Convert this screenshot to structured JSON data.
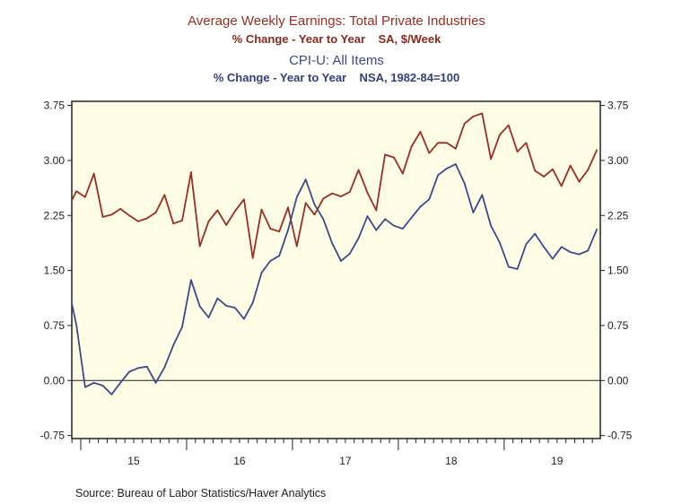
{
  "titles": {
    "line1": "Average Weekly Earnings: Total Private Industries",
    "line2": "% Change - Year to Year    SA, $/Week",
    "line3": "CPI-U: All Items",
    "line4": "% Change - Year to Year    NSA, 1982-84=100"
  },
  "source": "Source:  Bureau of Labor Statistics/Haver Analytics",
  "chart_data": {
    "type": "line",
    "title": "Average Weekly Earnings: Total Private Industries / CPI-U: All Items",
    "xlabel": "",
    "ylabel": "",
    "xlim": [
      "2014-12",
      "2019-11"
    ],
    "ylim": [
      -0.75,
      3.75
    ],
    "yticks": [
      "3.75",
      "3.00",
      "2.25",
      "1.50",
      "0.75",
      "0.00",
      "-0.75"
    ],
    "yticks_right": [
      "3.75",
      "3.00",
      "2.25",
      "1.50",
      "0.75",
      "0.00",
      "-0.75"
    ],
    "xtick_labels": [
      "15",
      "16",
      "17",
      "18",
      "19"
    ],
    "grid": false,
    "zero_line": true,
    "background": "#fffde6",
    "x": [
      "2014-11",
      "2014-12",
      "2015-01",
      "2015-02",
      "2015-03",
      "2015-04",
      "2015-05",
      "2015-06",
      "2015-07",
      "2015-08",
      "2015-09",
      "2015-10",
      "2015-11",
      "2015-12",
      "2016-01",
      "2016-02",
      "2016-03",
      "2016-04",
      "2016-05",
      "2016-06",
      "2016-07",
      "2016-08",
      "2016-09",
      "2016-10",
      "2016-11",
      "2016-12",
      "2017-01",
      "2017-02",
      "2017-03",
      "2017-04",
      "2017-05",
      "2017-06",
      "2017-07",
      "2017-08",
      "2017-09",
      "2017-10",
      "2017-11",
      "2017-12",
      "2018-01",
      "2018-02",
      "2018-03",
      "2018-04",
      "2018-05",
      "2018-06",
      "2018-07",
      "2018-08",
      "2018-09",
      "2018-10",
      "2018-11",
      "2018-12",
      "2019-01",
      "2019-02",
      "2019-03",
      "2019-04",
      "2019-05",
      "2019-06",
      "2019-07",
      "2019-08",
      "2019-09",
      "2019-10",
      "2019-11"
    ],
    "series": [
      {
        "name": "Average Weekly Earnings: Total Private Industries",
        "color": "#9b2d22",
        "values": [
          2.34,
          2.58,
          2.5,
          2.82,
          2.23,
          2.26,
          2.34,
          2.25,
          2.17,
          2.21,
          2.29,
          2.53,
          2.14,
          2.18,
          2.84,
          1.83,
          2.17,
          2.32,
          2.12,
          2.31,
          2.47,
          1.67,
          2.33,
          2.07,
          2.03,
          2.36,
          1.83,
          2.42,
          2.26,
          2.48,
          2.55,
          2.51,
          2.57,
          2.87,
          2.56,
          2.32,
          3.08,
          3.04,
          2.82,
          3.19,
          3.39,
          3.1,
          3.24,
          3.24,
          3.16,
          3.5,
          3.6,
          3.64,
          3.02,
          3.35,
          3.48,
          3.12,
          3.24,
          2.86,
          2.78,
          2.88,
          2.65,
          2.93,
          2.71,
          2.87,
          3.14
        ]
      },
      {
        "name": "CPI-U: All Items",
        "color": "#3b4a8c",
        "values": [
          1.32,
          0.76,
          -0.09,
          -0.03,
          -0.07,
          -0.19,
          -0.03,
          0.12,
          0.17,
          0.19,
          -0.03,
          0.18,
          0.48,
          0.73,
          1.37,
          1.01,
          0.86,
          1.12,
          1.02,
          0.99,
          0.84,
          1.06,
          1.47,
          1.63,
          1.7,
          2.05,
          2.5,
          2.74,
          2.4,
          2.2,
          1.87,
          1.63,
          1.73,
          1.94,
          2.24,
          2.05,
          2.2,
          2.11,
          2.07,
          2.22,
          2.37,
          2.47,
          2.8,
          2.89,
          2.95,
          2.69,
          2.29,
          2.53,
          2.11,
          1.88,
          1.55,
          1.52,
          1.86,
          2.0,
          1.82,
          1.66,
          1.82,
          1.75,
          1.72,
          1.77,
          2.06
        ]
      }
    ]
  }
}
